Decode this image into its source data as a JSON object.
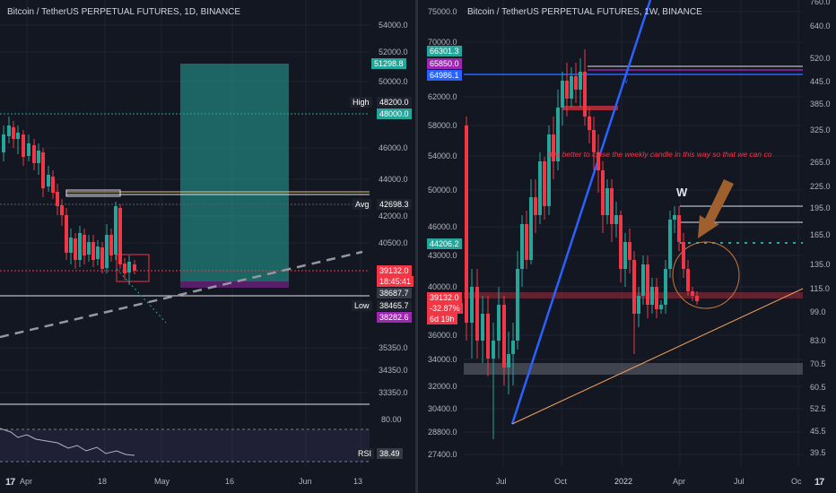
{
  "left_chart": {
    "title": "Bitcoin / TetherUS PERPETUAL FUTURES, 1D, BINANCE",
    "price_ticks": [
      "54000.0",
      "52000.0",
      "50000.0",
      "46000.0",
      "44000.0",
      "42000.0",
      "40500.0",
      "35350.0",
      "34350.0",
      "33350.0"
    ],
    "time_ticks": [
      "Apr",
      "18",
      "May",
      "16",
      "Jun",
      "13"
    ],
    "labels": {
      "target": "51298.8",
      "high_label": "High",
      "high_value": "48200.0",
      "level_48000": "48000.0",
      "avg_label": "Avg",
      "avg_value": "42698.3",
      "price_last": "39132.0",
      "countdown": "18:45:41",
      "stop": "38687.7",
      "low_label": "Low",
      "low_value": "38465.7",
      "entry": "38282.6"
    },
    "rsi": {
      "label": "RSI",
      "value": "38.49",
      "top_tick": "80.00"
    },
    "colors": {
      "target": "#26a69a",
      "price": "#f23645",
      "stop": "#363a45",
      "entry": "#9c27b0",
      "tag": "#1e3a6e"
    }
  },
  "right_chart": {
    "title": "Bitcoin / TetherUS PERPETUAL FUTURES, 1W, BINANCE",
    "price_ticks": [
      "75000.0",
      "70000.0",
      "62000.0",
      "58000.0",
      "54000.0",
      "50000.0",
      "46000.0",
      "43000.0",
      "40000.0",
      "36000.0",
      "34000.0",
      "32000.0",
      "30400.0",
      "28800.0",
      "27400.0"
    ],
    "rsi_ticks": [
      "760.0",
      "640.0",
      "520.0",
      "445.0",
      "385.0",
      "325.0",
      "265.0",
      "225.0",
      "195.0",
      "165.0",
      "135.0",
      "115.0",
      "99.0",
      "83.0",
      "70.5",
      "60.5",
      "52.5",
      "45.5",
      "39.5"
    ],
    "time_ticks": [
      "Jul",
      "Oct",
      "2022",
      "Apr",
      "Jul",
      "Oc"
    ],
    "labels": {
      "l1": "66301.3",
      "l2": "65850.0",
      "l3": "64986.1",
      "l4": "44206.2",
      "price_last": "39132.0",
      "change": "-32.87%",
      "countdown": "6d 19h"
    },
    "annotation": "It is better to close the weekly candle in this way so that we can co",
    "w_label": "W",
    "w_small": "w",
    "colors": {
      "l1": "#26a69a",
      "l2": "#9c27b0",
      "l3": "#2962ff",
      "l4": "#26a69a",
      "price": "#f23645"
    }
  },
  "footer": {
    "logo": "17"
  }
}
